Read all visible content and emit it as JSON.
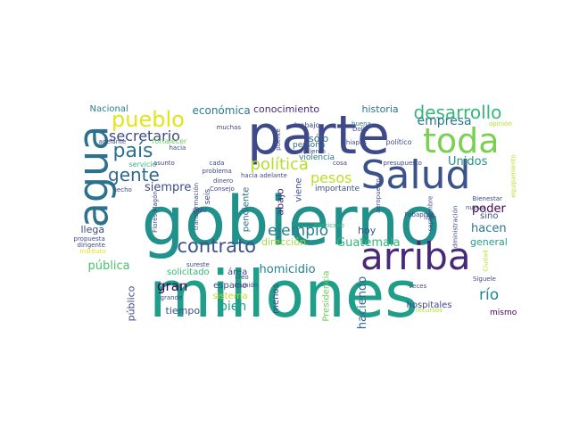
{
  "words": [
    {
      "text": "gobierno",
      "color": "#21918c",
      "icon": "word-gobierno"
    },
    {
      "text": "millones",
      "color": "#1f9e89",
      "icon": "word-millones"
    },
    {
      "text": "parte",
      "color": "#3e4989",
      "icon": "word-parte"
    },
    {
      "text": "arriba",
      "color": "#482878",
      "icon": "word-arriba"
    },
    {
      "text": "Salud",
      "color": "#3b528b",
      "icon": "word-salud"
    },
    {
      "text": "toda",
      "color": "#7ad151",
      "icon": "word-toda"
    },
    {
      "text": "agua",
      "color": "#2c728e",
      "icon": "word-agua"
    },
    {
      "text": "pueblo",
      "color": "#e2e418",
      "icon": "word-pueblo"
    },
    {
      "text": "desarrollo",
      "color": "#35b779",
      "icon": "word-desarrollo"
    },
    {
      "text": "país",
      "color": "#2c728e",
      "icon": "word-pais"
    },
    {
      "text": "contrato",
      "color": "#3b528b",
      "icon": "word-contrato"
    },
    {
      "text": "gente",
      "color": "#31688e",
      "icon": "word-gente"
    },
    {
      "text": "política",
      "color": "#b5de2b",
      "icon": "word-politica"
    },
    {
      "text": "secretario",
      "color": "#3e4989",
      "icon": "word-secretario"
    },
    {
      "text": "ejemplo",
      "color": "#287c8e",
      "icon": "word-ejemplo"
    },
    {
      "text": "pesos",
      "color": "#bddf26",
      "icon": "word-pesos"
    },
    {
      "text": "empresa",
      "color": "#2a788e",
      "icon": "word-empresa"
    },
    {
      "text": "río",
      "color": "#25858e",
      "icon": "word-rio"
    },
    {
      "text": "gran",
      "color": "#440154",
      "icon": "word-gran"
    },
    {
      "text": "bien",
      "color": "#1fa088",
      "icon": "word-bien"
    },
    {
      "text": "pública",
      "color": "#4ac16d",
      "icon": "word-publica"
    },
    {
      "text": "homicidio",
      "color": "#26828e",
      "icon": "word-homicidio"
    },
    {
      "text": "Guatemala",
      "color": "#35b779",
      "icon": "word-guatemala"
    },
    {
      "text": "poder",
      "color": "#440154",
      "icon": "word-poder"
    },
    {
      "text": "hacen",
      "color": "#2a788e",
      "icon": "word-hacen"
    },
    {
      "text": "haciendo",
      "color": "#31688e",
      "icon": "word-haciendo"
    },
    {
      "text": "siempre",
      "color": "#3e4989",
      "icon": "word-siempre"
    },
    {
      "text": "Unidos",
      "color": "#21918c",
      "icon": "word-unidos"
    },
    {
      "text": "económica",
      "color": "#2a788e",
      "icon": "word-economica"
    },
    {
      "text": "conocimiento",
      "color": "#482878",
      "icon": "word-conocimiento"
    },
    {
      "text": "historia",
      "color": "#2c728e",
      "icon": "word-historia"
    },
    {
      "text": "sólo",
      "color": "#31688e",
      "icon": "word-solo"
    },
    {
      "text": "abajo",
      "color": "#482878",
      "icon": "word-abajo"
    },
    {
      "text": "hoy",
      "color": "#3b528b",
      "icon": "word-hoy"
    },
    {
      "text": "llega",
      "color": "#3e4989",
      "icon": "word-llega"
    },
    {
      "text": "dirección",
      "color": "#a0da39",
      "icon": "word-direccion"
    },
    {
      "text": "general",
      "color": "#1fa088",
      "icon": "word-general"
    },
    {
      "text": "sino",
      "color": "#3b528b",
      "icon": "word-sino"
    },
    {
      "text": "hospitales",
      "color": "#3e4989",
      "icon": "word-hospitales"
    },
    {
      "text": "tiempo",
      "color": "#3b528b",
      "icon": "word-tiempo"
    },
    {
      "text": "espacio",
      "color": "#3b528b",
      "icon": "word-espacio"
    },
    {
      "text": "público",
      "color": "#3e4989",
      "icon": "word-publico"
    },
    {
      "text": "solicitado",
      "color": "#35b779",
      "icon": "word-solicitado"
    },
    {
      "text": "sistema",
      "color": "#bddf26",
      "icon": "word-sistema"
    },
    {
      "text": "menos",
      "color": "#3e4989",
      "icon": "word-menos"
    },
    {
      "text": "pendiente",
      "color": "#2c728e",
      "icon": "word-pendiente"
    },
    {
      "text": "viene",
      "color": "#3b528b",
      "icon": "word-viene"
    },
    {
      "text": "Nacional",
      "color": "#26828e",
      "icon": "word-nacional"
    },
    {
      "text": "área",
      "color": "#3b528b",
      "icon": "word-area"
    },
    {
      "text": "mismo",
      "color": "#440154",
      "icon": "word-mismo"
    },
    {
      "text": "Presidencia",
      "color": "#6ccd5a",
      "icon": "word-presidencia"
    },
    {
      "text": "seis",
      "color": "#3e4989",
      "icon": "word-seis"
    },
    {
      "text": "persona",
      "color": "#31688e",
      "icon": "word-persona"
    },
    {
      "text": "violencia",
      "color": "#2a788e",
      "icon": "word-violencia"
    },
    {
      "text": "importante",
      "color": "#3b528b",
      "icon": "word-importante"
    },
    {
      "text": "muchas",
      "color": "#3e4989",
      "icon": "word-muchas"
    },
    {
      "text": "trabajo",
      "color": "#3e4989",
      "icon": "word-trabajo"
    },
    {
      "text": "buena",
      "color": "#26828e",
      "icon": "word-buena"
    },
    {
      "text": "opinión",
      "color": "#b5de2b",
      "icon": "word-opinion"
    },
    {
      "text": "Dolia",
      "color": "#3e4989",
      "icon": "word-dolia"
    },
    {
      "text": "político",
      "color": "#3e4989",
      "icon": "word-politico"
    },
    {
      "text": "adelante",
      "color": "#3e4989",
      "icon": "word-adelante"
    },
    {
      "text": "fortalecer",
      "color": "#6ccd5a",
      "icon": "word-fortalecer"
    },
    {
      "text": "hacia",
      "color": "#3e4989",
      "icon": "word-hacia"
    },
    {
      "text": "problema",
      "color": "#3e4989",
      "icon": "word-problema"
    },
    {
      "text": "puente",
      "color": "#3e4989",
      "icon": "word-puente"
    },
    {
      "text": "hicieron",
      "color": "#3e4989",
      "icon": "word-hicieron"
    },
    {
      "text": "Chiapas",
      "color": "#3e4989",
      "icon": "word-chiapas"
    },
    {
      "text": "cada",
      "color": "#3e4989",
      "icon": "word-cada"
    },
    {
      "text": "cosa",
      "color": "#3e4989",
      "icon": "word-cosa"
    },
    {
      "text": "presupuesto",
      "color": "#3e4989",
      "icon": "word-presupuesto"
    },
    {
      "text": "servicio",
      "color": "#35b779",
      "icon": "word-servicio"
    },
    {
      "text": "asunto",
      "color": "#3e4989",
      "icon": "word-asunto"
    },
    {
      "text": "hecho",
      "color": "#3e4989",
      "icon": "word-hecho"
    },
    {
      "text": "Consejo",
      "color": "#3e4989",
      "icon": "word-consejo"
    },
    {
      "text": "hacia adelante",
      "color": "#3e4989",
      "icon": "word-hacia-adelante"
    },
    {
      "text": "dinero",
      "color": "#3e4989",
      "icon": "word-dinero"
    },
    {
      "text": "transformación",
      "color": "#3e4989",
      "icon": "word-transformacion"
    },
    {
      "text": "Flores Magón",
      "color": "#3e4989",
      "icon": "word-flores-magon"
    },
    {
      "text": "ONU",
      "color": "#3e4989",
      "icon": "word-onu"
    },
    {
      "text": "mexicano",
      "color": "#35b779",
      "icon": "word-mexicano"
    },
    {
      "text": "aeropuerto",
      "color": "#3e4989",
      "icon": "word-aeropuerto"
    },
    {
      "text": "Fobaproa",
      "color": "#3e4989",
      "icon": "word-fobaproa"
    },
    {
      "text": "septiembre",
      "color": "#3e4989",
      "icon": "word-septiembre"
    },
    {
      "text": "administración",
      "color": "#3e4989",
      "icon": "word-administracion"
    },
    {
      "text": "tren",
      "color": "#3e4989",
      "icon": "word-tren"
    },
    {
      "text": "Bienestar",
      "color": "#3e4989",
      "icon": "word-bienestar"
    },
    {
      "text": "nueva",
      "color": "#3e4989",
      "icon": "word-nueva"
    },
    {
      "text": "equipamiento",
      "color": "#b5de2b",
      "icon": "word-equipamiento"
    },
    {
      "text": "propuesta",
      "color": "#3e4989",
      "icon": "word-propuesta"
    },
    {
      "text": "dirigente",
      "color": "#3e4989",
      "icon": "word-dirigente"
    },
    {
      "text": "Instituto",
      "color": "#e2e418",
      "icon": "word-instituto"
    },
    {
      "text": "sureste",
      "color": "#3e4989",
      "icon": "word-sureste"
    },
    {
      "text": "creo",
      "color": "#3e4989",
      "icon": "word-creo"
    },
    {
      "text": "grande",
      "color": "#3e4989",
      "icon": "word-grande"
    },
    {
      "text": "reunión",
      "color": "#3e4989",
      "icon": "word-reunion"
    },
    {
      "text": "veces",
      "color": "#3e4989",
      "icon": "word-veces"
    },
    {
      "text": "Síguele",
      "color": "#3e4989",
      "icon": "word-siguele"
    },
    {
      "text": "recursos",
      "color": "#b5de2b",
      "icon": "word-recursos"
    },
    {
      "text": "Ciudad",
      "color": "#b5de2b",
      "icon": "word-ciudad"
    }
  ]
}
